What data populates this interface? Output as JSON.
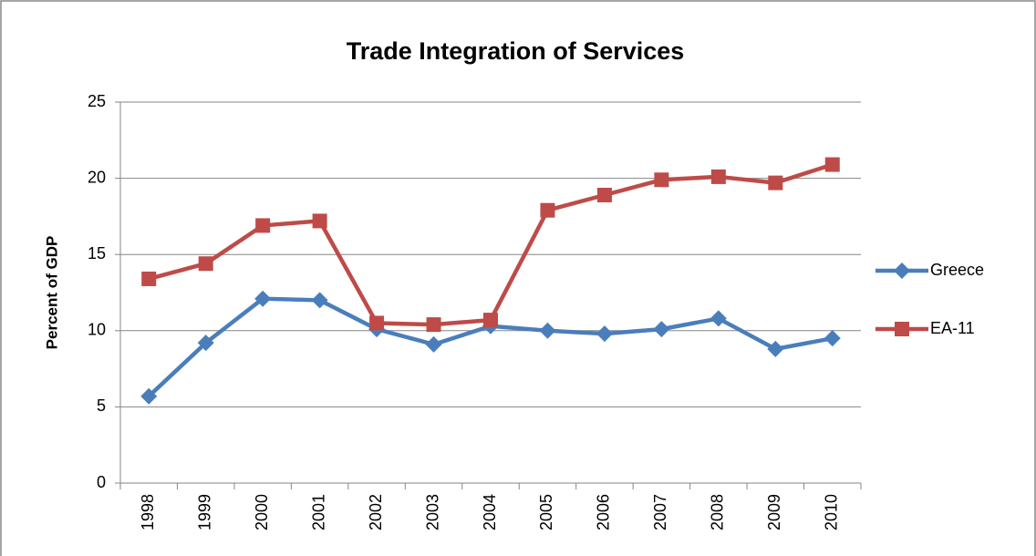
{
  "chart_data": {
    "type": "line",
    "title": "Trade Integration of Services",
    "y_label": "Percent of GDP",
    "categories": [
      "1998",
      "1999",
      "2000",
      "2001",
      "2002",
      "2003",
      "2004",
      "2005",
      "2006",
      "2007",
      "2008",
      "2009",
      "2010"
    ],
    "series": [
      {
        "name": "Greece",
        "color": "#4a7ebb",
        "marker": "diamond",
        "values": [
          5.7,
          9.2,
          12.1,
          12.0,
          10.1,
          9.1,
          10.3,
          10.0,
          9.8,
          10.1,
          10.8,
          8.8,
          9.5
        ]
      },
      {
        "name": "EA-11",
        "color": "#be4b48",
        "marker": "square",
        "values": [
          13.4,
          14.4,
          16.9,
          17.2,
          10.5,
          10.4,
          10.7,
          17.9,
          18.9,
          19.9,
          20.1,
          19.7,
          20.9
        ]
      }
    ],
    "ylim": [
      0,
      25
    ],
    "yticks": [
      0,
      5,
      10,
      15,
      20,
      25
    ],
    "grid": true,
    "legend": "right"
  }
}
